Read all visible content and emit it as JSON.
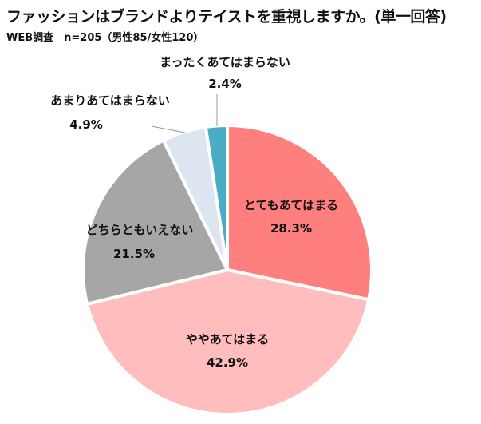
{
  "chart_data": {
    "type": "pie",
    "title": "ファッションはブランドよりテイストを重視しますか。(単一回答)",
    "subtitle": "WEB調査　n=205（男性85/女性120）",
    "start": "top",
    "direction": "clockwise",
    "slices": [
      {
        "label": "とてもあてはまる",
        "value": 28.3,
        "display": "28.3%",
        "color": "#FF7F7F"
      },
      {
        "label": "ややあてはまる",
        "value": 42.9,
        "display": "42.9%",
        "color": "#FFBDBD"
      },
      {
        "label": "どちらともいえない",
        "value": 21.5,
        "display": "21.5%",
        "color": "#A6A6A6"
      },
      {
        "label": "あまりあてはまらない",
        "value": 4.9,
        "display": "4.9%",
        "color": "#DDE5F0"
      },
      {
        "label": "まったくあてはまらない",
        "value": 2.4,
        "display": "2.4%",
        "color": "#4BACC6"
      }
    ]
  }
}
